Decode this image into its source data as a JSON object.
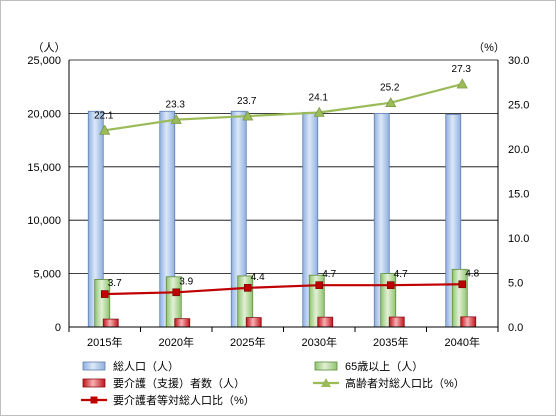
{
  "chart_data": {
    "type": "bar",
    "categories": [
      "2015年",
      "2020年",
      "2025年",
      "2030年",
      "2035年",
      "2040年"
    ],
    "left_axis": {
      "unit": "（人）",
      "min": 0,
      "max": 25000,
      "step": 5000,
      "ticks": [
        "0",
        "5,000",
        "10,000",
        "15,000",
        "20,000",
        "25,000"
      ]
    },
    "right_axis": {
      "unit": "（%）",
      "min": 0,
      "max": 30,
      "step": 5,
      "ticks": [
        "0.0",
        "5.0",
        "10.0",
        "15.0",
        "20.0",
        "25.0",
        "30.0"
      ]
    },
    "series": [
      {
        "name": "総人口（人）",
        "kind": "bar",
        "axis": "left",
        "color": "#9dbde8",
        "values": [
          20200,
          20200,
          20200,
          20100,
          20000,
          19900
        ]
      },
      {
        "name": "65歳以上（人）",
        "kind": "bar",
        "axis": "left",
        "color": "#a9d18e",
        "values": [
          4450,
          4700,
          4780,
          4850,
          5000,
          5400
        ]
      },
      {
        "name": "要介護（支援）者数（人）",
        "kind": "bar",
        "axis": "left",
        "color": "#e0393e",
        "values": [
          740,
          780,
          880,
          920,
          930,
          950
        ]
      },
      {
        "name": "高齢者対総人口比（%）",
        "kind": "line",
        "axis": "right",
        "color": "#9bbb59",
        "values": [
          22.1,
          23.3,
          23.7,
          24.1,
          25.2,
          27.3
        ],
        "labels": [
          "22.1",
          "23.3",
          "23.7",
          "24.1",
          "25.2",
          "27.3"
        ]
      },
      {
        "name": "要介護者等対総人口比（%）",
        "kind": "line",
        "axis": "right",
        "color": "#c00000",
        "values": [
          3.7,
          3.9,
          4.4,
          4.7,
          4.7,
          4.8
        ],
        "labels": [
          "3.7",
          "3.9",
          "4.4",
          "4.7",
          "4.7",
          "4.8"
        ]
      }
    ],
    "grid": true,
    "legend_position": "bottom"
  }
}
